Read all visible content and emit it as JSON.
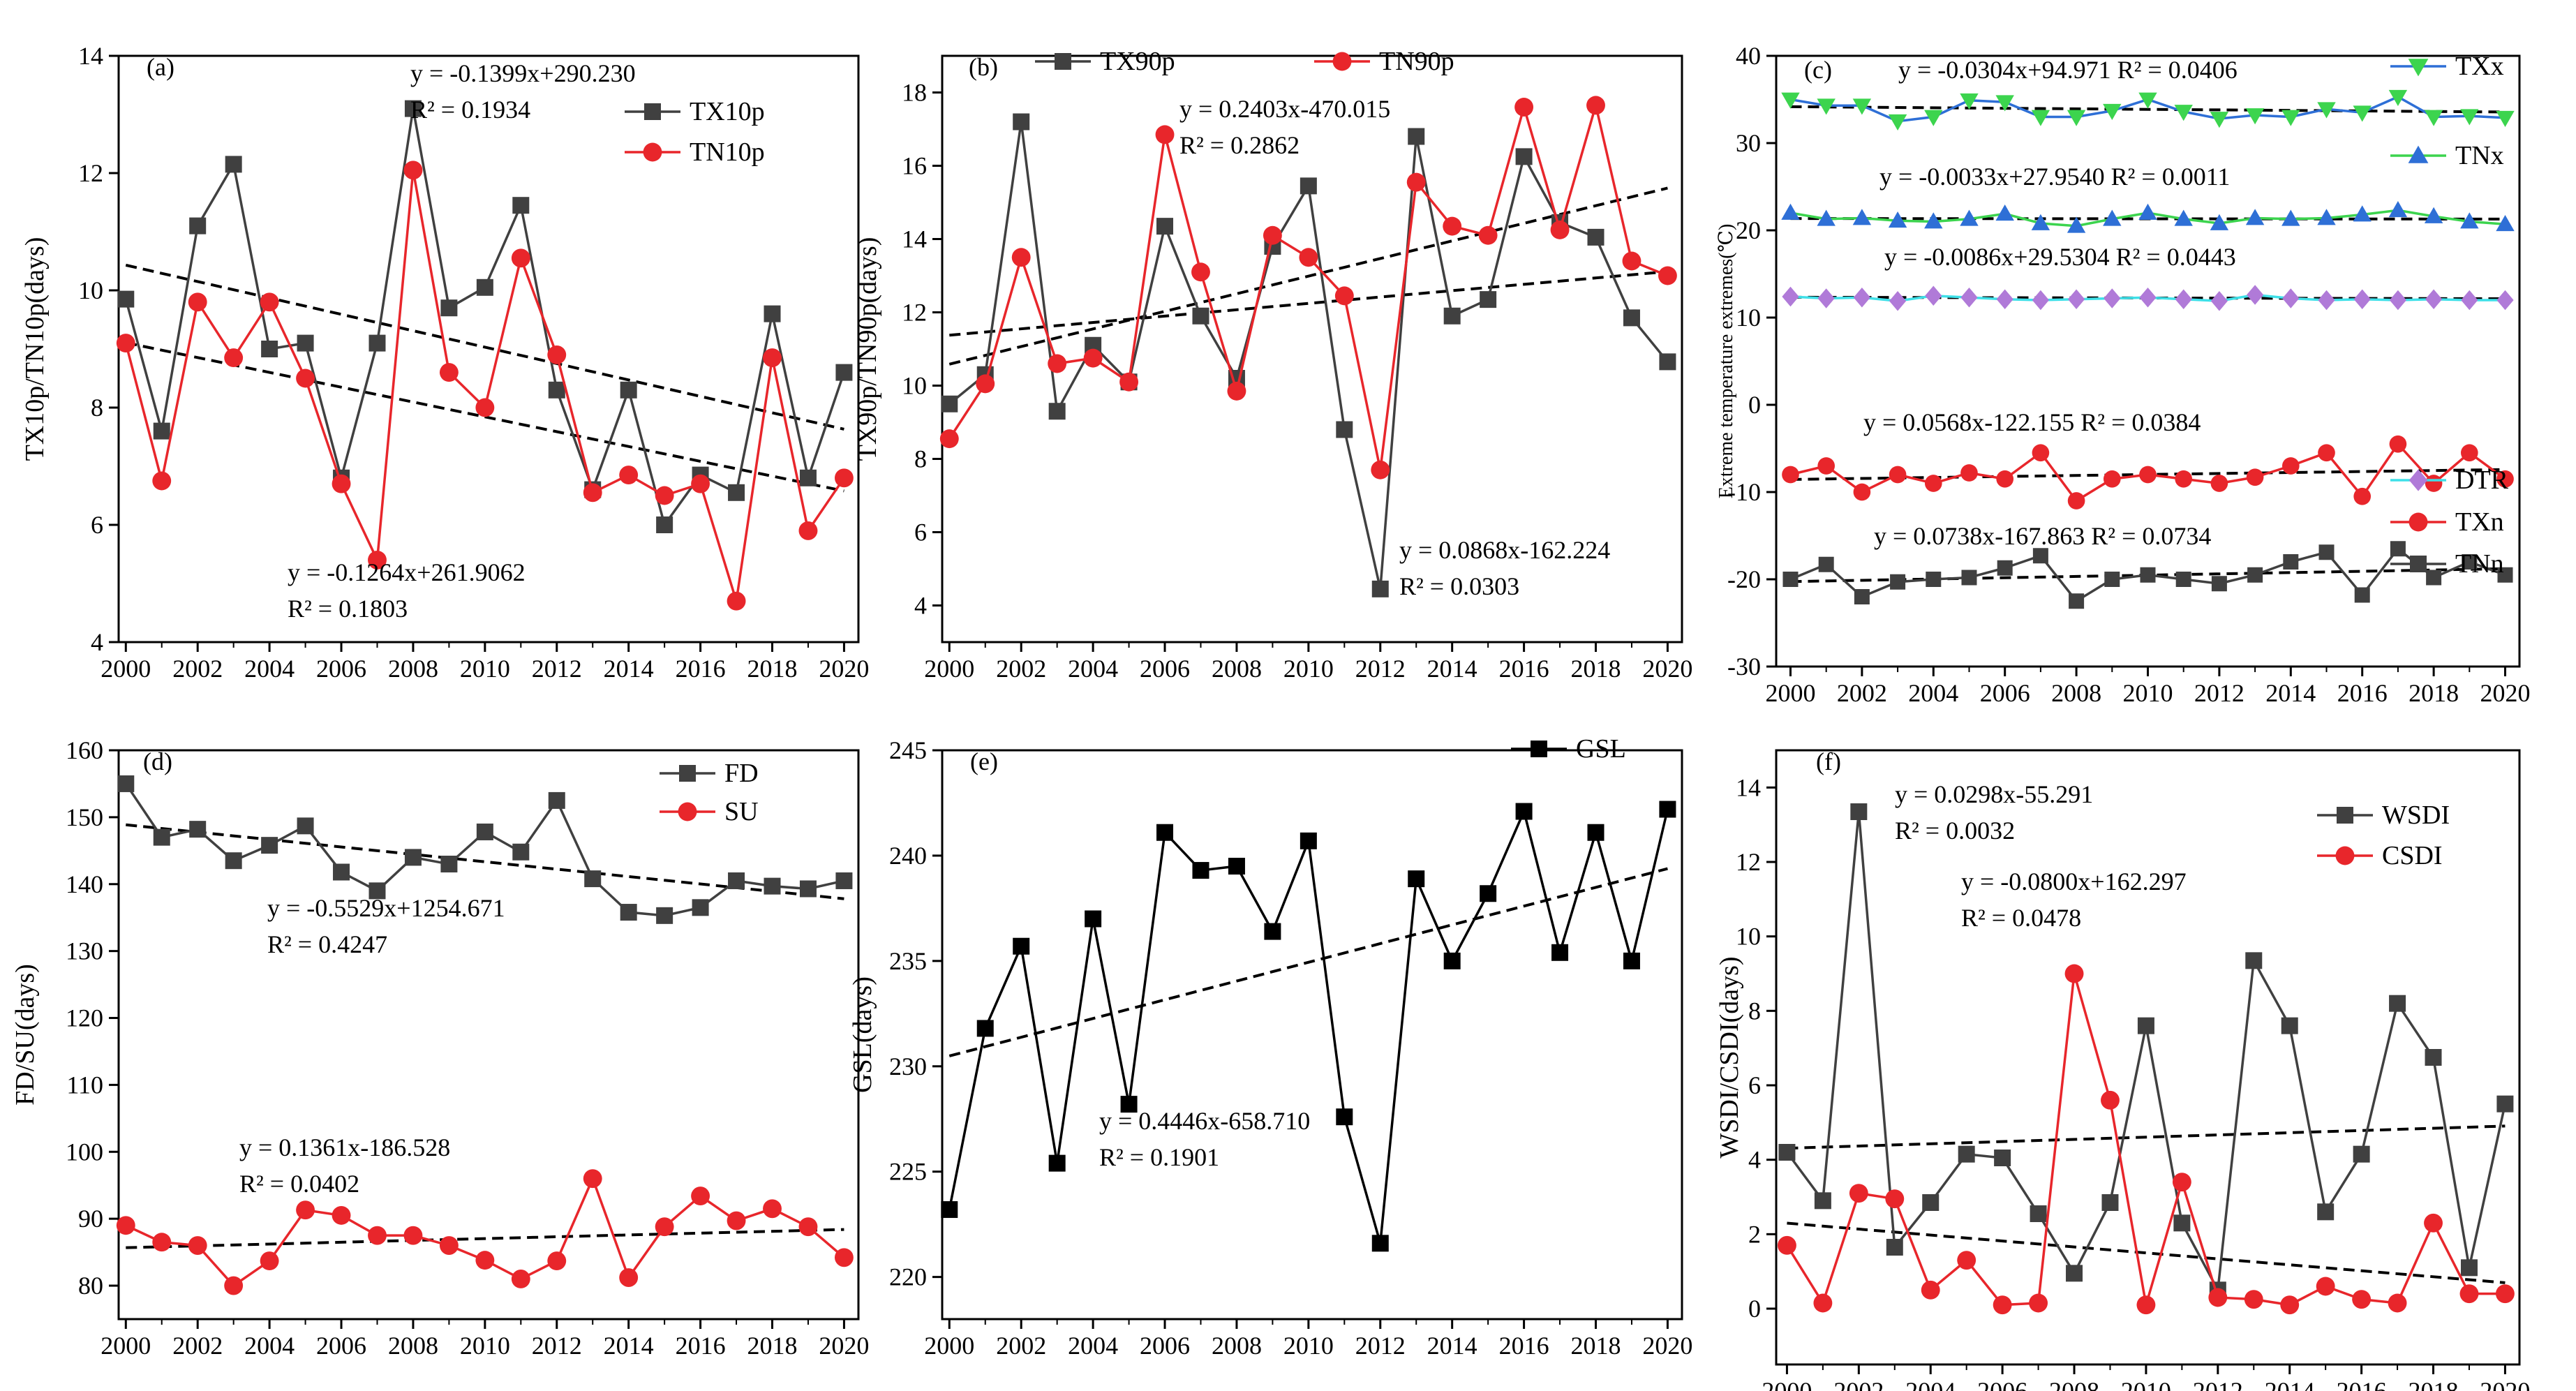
{
  "colors": {
    "black": "#000000",
    "dark_gray": "#404040",
    "red": "#e8262b",
    "green": "#3cd44e",
    "blue": "#2e6fd6",
    "purple": "#b07ad8",
    "cyan": "#3ee0e8"
  },
  "chart_data": [
    {
      "type": "line",
      "panel": "(a)",
      "ylabel": "TX10p/TN10p(days)",
      "xlabel": "",
      "xlim": [
        1999.8,
        2020.4
      ],
      "ylim": [
        4,
        14
      ],
      "xticks": [
        2000,
        2002,
        2004,
        2006,
        2008,
        2010,
        2012,
        2014,
        2016,
        2018,
        2020
      ],
      "yticks": [
        4,
        6,
        8,
        10,
        12,
        14
      ],
      "legend_position": "top-right",
      "x": [
        2000,
        2001,
        2002,
        2003,
        2004,
        2005,
        2006,
        2007,
        2008,
        2009,
        2010,
        2011,
        2012,
        2013,
        2014,
        2015,
        2016,
        2017,
        2018,
        2019,
        2020
      ],
      "series": [
        {
          "name": "TX10p",
          "marker": "square",
          "color": "#404040",
          "values": [
            9.85,
            7.6,
            11.1,
            12.15,
            9.0,
            9.1,
            6.8,
            9.1,
            13.1,
            9.7,
            10.05,
            11.45,
            8.3,
            6.6,
            8.3,
            6.0,
            6.85,
            6.55,
            9.6,
            6.8,
            8.6
          ]
        },
        {
          "name": "TN10p",
          "marker": "circle",
          "color": "#e8262b",
          "values": [
            9.1,
            6.75,
            9.8,
            8.85,
            9.8,
            8.5,
            6.7,
            5.4,
            12.05,
            8.6,
            8.0,
            10.55,
            8.9,
            6.55,
            6.85,
            6.5,
            6.7,
            4.7,
            8.85,
            5.9,
            6.8
          ]
        }
      ],
      "trendlines": [
        {
          "series": "TX10p",
          "slope": -0.1399,
          "intercept": 290.23
        },
        {
          "series": "TN10p",
          "slope": -0.1264,
          "intercept": 261.9062
        }
      ],
      "annotations": [
        {
          "line1": "y = -0.1399x+290.230",
          "line2": "R² = 0.1934"
        },
        {
          "line1": "y = -0.1264x+261.9062",
          "line2": "R² = 0.1803"
        }
      ]
    },
    {
      "type": "line",
      "panel": "(b)",
      "ylabel": "TX90p/TN90p(days)",
      "xlabel": "",
      "xlim": [
        1999.8,
        2020.4
      ],
      "ylim": [
        3,
        19
      ],
      "xticks": [
        2000,
        2002,
        2004,
        2006,
        2008,
        2010,
        2012,
        2014,
        2016,
        2018,
        2020
      ],
      "yticks": [
        4,
        6,
        8,
        10,
        12,
        14,
        16,
        18
      ],
      "legend_position": "top",
      "x": [
        2000,
        2001,
        2002,
        2003,
        2004,
        2005,
        2006,
        2007,
        2008,
        2009,
        2010,
        2011,
        2012,
        2013,
        2014,
        2015,
        2016,
        2017,
        2018,
        2019,
        2020
      ],
      "series": [
        {
          "name": "TX90p",
          "marker": "square",
          "color": "#404040",
          "values": [
            9.5,
            10.3,
            17.2,
            9.3,
            11.1,
            10.1,
            14.35,
            11.9,
            10.2,
            13.8,
            15.45,
            8.8,
            4.45,
            16.8,
            11.9,
            12.35,
            16.25,
            14.45,
            14.05,
            11.85,
            10.65
          ]
        },
        {
          "name": "TN90p",
          "marker": "circle",
          "color": "#e8262b",
          "values": [
            8.55,
            10.05,
            13.5,
            10.6,
            10.75,
            10.1,
            16.85,
            13.1,
            9.85,
            14.1,
            13.5,
            12.45,
            7.7,
            15.55,
            14.35,
            14.1,
            17.6,
            14.25,
            17.65,
            13.4,
            13.0
          ]
        }
      ],
      "trendlines": [
        {
          "series": "TN90p",
          "slope": 0.2403,
          "intercept": -470.015
        },
        {
          "series": "TX90p",
          "slope": 0.0868,
          "intercept": -162.224
        }
      ],
      "annotations": [
        {
          "line1": "y = 0.2403x-470.015",
          "line2": "R² = 0.2862"
        },
        {
          "line1": "y = 0.0868x-162.224",
          "line2": "R² = 0.0303"
        }
      ]
    },
    {
      "type": "line",
      "panel": "(c)",
      "ylabel": "Extreme temperature extremes(℃)",
      "xlabel": "",
      "xlim": [
        1999.6,
        2020.4
      ],
      "ylim": [
        -30,
        40
      ],
      "xticks": [
        2000,
        2002,
        2004,
        2006,
        2008,
        2010,
        2012,
        2014,
        2016,
        2018,
        2020
      ],
      "yticks": [
        -30,
        -20,
        -10,
        0,
        10,
        20,
        30,
        40
      ],
      "legend_position": "right",
      "x": [
        2000,
        2001,
        2002,
        2003,
        2004,
        2005,
        2006,
        2007,
        2008,
        2009,
        2010,
        2011,
        2012,
        2013,
        2014,
        2015,
        2016,
        2017,
        2018,
        2019,
        2020
      ],
      "series": [
        {
          "name": "TXx",
          "marker": "triangle-down",
          "color": "#2e6fd6",
          "marker_color": "#3cd44e",
          "values": [
            35.0,
            34.3,
            34.3,
            32.5,
            33.0,
            34.9,
            34.7,
            33.0,
            33.0,
            33.7,
            35.0,
            33.6,
            32.8,
            33.2,
            33.0,
            33.9,
            33.5,
            35.3,
            33.0,
            33.1,
            32.9
          ]
        },
        {
          "name": "TNx",
          "marker": "triangle-up",
          "color": "#3cd44e",
          "marker_color": "#2e6fd6",
          "values": [
            22.0,
            21.3,
            21.4,
            21.1,
            21.0,
            21.3,
            21.9,
            20.8,
            20.5,
            21.3,
            22.0,
            21.3,
            20.8,
            21.4,
            21.3,
            21.4,
            21.8,
            22.3,
            21.6,
            21.0,
            20.7
          ]
        },
        {
          "name": "DTR",
          "marker": "diamond",
          "color": "#3ee0e8",
          "marker_color": "#b07ad8",
          "values": [
            12.4,
            12.2,
            12.3,
            11.9,
            12.5,
            12.3,
            12.1,
            12.0,
            12.1,
            12.2,
            12.3,
            12.1,
            11.9,
            12.6,
            12.2,
            12.0,
            12.1,
            12.0,
            12.1,
            12.0,
            12.0
          ]
        },
        {
          "name": "TXn",
          "marker": "circle",
          "color": "#e8262b",
          "values": [
            -8.0,
            -7.0,
            -10.0,
            -8.0,
            -9.0,
            -7.8,
            -8.5,
            -5.5,
            -11.0,
            -8.5,
            -8.0,
            -8.5,
            -9.0,
            -8.3,
            -7.0,
            -5.5,
            -10.5,
            -4.5,
            -9.0,
            -5.5,
            -8.5
          ]
        },
        {
          "name": "TNn",
          "marker": "square",
          "color": "#404040",
          "values": [
            -20.0,
            -18.3,
            -22.0,
            -20.3,
            -20.0,
            -19.8,
            -18.7,
            -17.3,
            -22.5,
            -20.0,
            -19.5,
            -20.0,
            -20.5,
            -19.5,
            -18.0,
            -16.9,
            -21.8,
            -16.5,
            -19.8,
            -18.0,
            -19.5
          ]
        }
      ],
      "trendlines": [
        {
          "series": "TXx",
          "slope": -0.0304,
          "intercept": 94.971
        },
        {
          "series": "TNx",
          "slope": -0.0033,
          "intercept": 27.954
        },
        {
          "series": "DTR",
          "slope": -0.0086,
          "intercept": 29.5304
        },
        {
          "series": "TXn",
          "slope": 0.0568,
          "intercept": -122.155
        },
        {
          "series": "TNn",
          "slope": 0.0738,
          "intercept": -167.863
        }
      ],
      "annotations": [
        {
          "line1": "y = -0.0304x+94.971  R² = 0.0406"
        },
        {
          "line1": "y = -0.0033x+27.9540  R² = 0.0011"
        },
        {
          "line1": "y = -0.0086x+29.5304  R² = 0.0443"
        },
        {
          "line1": "y = 0.0568x-122.155  R² = 0.0384"
        },
        {
          "line1": "y = 0.0738x-167.863  R² = 0.0734"
        }
      ]
    },
    {
      "type": "line",
      "panel": "(d)",
      "ylabel": "FD/SU(days)",
      "xlabel": "",
      "xlim": [
        1999.8,
        2020.4
      ],
      "ylim": [
        75,
        160
      ],
      "xticks": [
        2000,
        2002,
        2004,
        2006,
        2008,
        2010,
        2012,
        2014,
        2016,
        2018,
        2020
      ],
      "yticks": [
        80,
        90,
        100,
        110,
        120,
        130,
        140,
        150,
        160
      ],
      "legend_position": "top-right",
      "x": [
        2000,
        2001,
        2002,
        2003,
        2004,
        2005,
        2006,
        2007,
        2008,
        2009,
        2010,
        2011,
        2012,
        2013,
        2014,
        2015,
        2016,
        2017,
        2018,
        2019,
        2020
      ],
      "series": [
        {
          "name": "FD",
          "marker": "square",
          "color": "#404040",
          "values": [
            155.0,
            147.0,
            148.2,
            143.5,
            145.8,
            148.7,
            141.8,
            139.0,
            144.0,
            143.0,
            147.8,
            144.8,
            152.5,
            140.8,
            135.8,
            135.3,
            136.5,
            140.5,
            139.7,
            139.3,
            140.5
          ]
        },
        {
          "name": "SU",
          "marker": "circle",
          "color": "#e8262b",
          "values": [
            89.0,
            86.5,
            86.0,
            80.0,
            83.7,
            91.3,
            90.5,
            87.5,
            87.5,
            86.0,
            83.8,
            81.0,
            83.7,
            96.0,
            81.2,
            88.8,
            93.4,
            89.7,
            91.5,
            88.8,
            84.2
          ]
        }
      ],
      "trendlines": [
        {
          "series": "FD",
          "slope": -0.5529,
          "intercept": 1254.671
        },
        {
          "series": "SU",
          "slope": 0.1361,
          "intercept": -186.528
        }
      ],
      "annotations": [
        {
          "line1": "y = -0.5529x+1254.671",
          "line2": "R² = 0.4247"
        },
        {
          "line1": "y = 0.1361x-186.528",
          "line2": "R² = 0.0402"
        }
      ]
    },
    {
      "type": "line",
      "panel": "(e)",
      "ylabel": "GSL(days)",
      "xlabel": "",
      "xlim": [
        1999.8,
        2020.4
      ],
      "ylim": [
        218,
        245
      ],
      "xticks": [
        2000,
        2002,
        2004,
        2006,
        2008,
        2010,
        2012,
        2014,
        2016,
        2018,
        2020
      ],
      "yticks": [
        220,
        225,
        230,
        235,
        240,
        245
      ],
      "legend_position": "top-right",
      "x": [
        2000,
        2001,
        2002,
        2003,
        2004,
        2005,
        2006,
        2007,
        2008,
        2009,
        2010,
        2011,
        2012,
        2013,
        2014,
        2015,
        2016,
        2017,
        2018,
        2019,
        2020
      ],
      "series": [
        {
          "name": "GSL",
          "marker": "square",
          "color": "#000000",
          "values": [
            223.2,
            231.8,
            235.7,
            225.4,
            237.0,
            228.2,
            241.1,
            239.3,
            239.5,
            236.4,
            240.7,
            227.6,
            221.6,
            238.9,
            235.0,
            238.2,
            242.1,
            235.4,
            241.1,
            235.0,
            242.2
          ]
        }
      ],
      "trendlines": [
        {
          "series": "GSL",
          "slope": 0.4446,
          "intercept": -658.71
        }
      ],
      "annotations": [
        {
          "line1": "y = 0.4446x-658.710",
          "line2": "R² = 0.1901"
        }
      ]
    },
    {
      "type": "line",
      "panel": "(f)",
      "ylabel": "WSDI/CSDI(days)",
      "xlabel": "",
      "xlim": [
        1999.7,
        2020.4
      ],
      "ylim": [
        -1.5,
        15
      ],
      "xticks": [
        2000,
        2002,
        2004,
        2006,
        2008,
        2010,
        2012,
        2014,
        2016,
        2018,
        2020
      ],
      "yticks": [
        0,
        2,
        4,
        6,
        8,
        10,
        12,
        14
      ],
      "legend_position": "top-right",
      "x": [
        2000,
        2001,
        2002,
        2003,
        2004,
        2005,
        2006,
        2007,
        2008,
        2009,
        2010,
        2011,
        2012,
        2013,
        2014,
        2015,
        2016,
        2017,
        2018,
        2019,
        2020
      ],
      "series": [
        {
          "name": "WSDI",
          "marker": "square",
          "color": "#404040",
          "values": [
            4.2,
            2.9,
            13.35,
            1.65,
            2.85,
            4.15,
            4.05,
            2.55,
            0.95,
            2.85,
            7.6,
            2.3,
            0.5,
            9.35,
            7.6,
            2.6,
            4.15,
            8.2,
            6.75,
            1.1,
            5.5
          ]
        },
        {
          "name": "CSDI",
          "marker": "circle",
          "color": "#e8262b",
          "values": [
            1.7,
            0.15,
            3.1,
            2.95,
            0.5,
            1.3,
            0.1,
            0.15,
            9.0,
            5.6,
            0.1,
            3.4,
            0.3,
            0.25,
            0.1,
            0.6,
            0.25,
            0.15,
            2.3,
            0.4,
            0.4
          ]
        }
      ],
      "trendlines": [
        {
          "series": "WSDI",
          "slope": 0.0298,
          "intercept": -55.291
        },
        {
          "series": "CSDI",
          "slope": -0.08,
          "intercept": 162.297
        }
      ],
      "annotations": [
        {
          "line1": "y = 0.0298x-55.291",
          "line2": "R² = 0.0032"
        },
        {
          "line1": "y = -0.0800x+162.297",
          "line2": "R² = 0.0478"
        }
      ]
    }
  ]
}
